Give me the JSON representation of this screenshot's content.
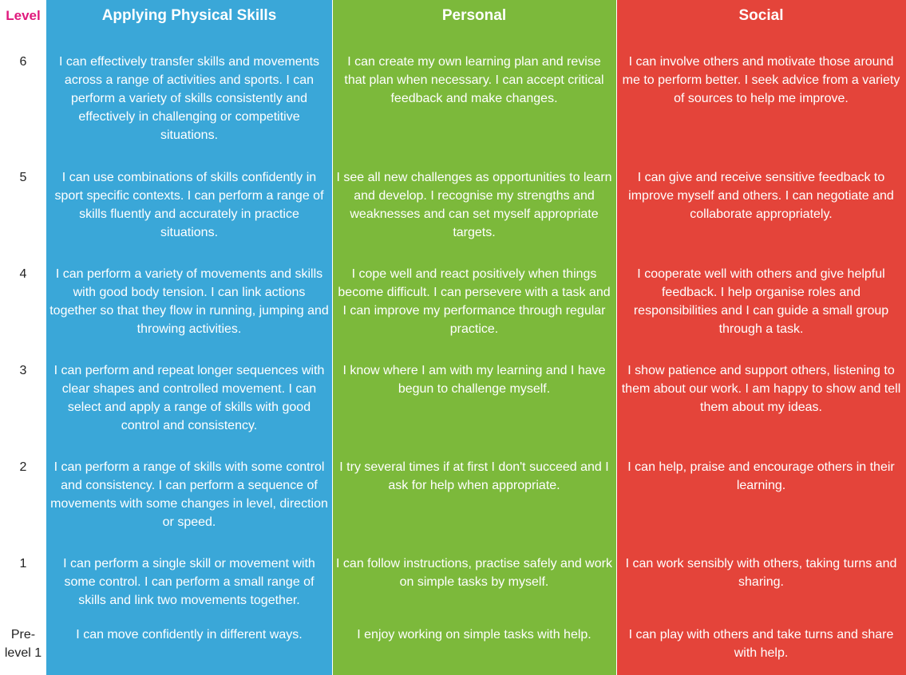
{
  "header": {
    "level": "Level",
    "physical": "Applying Physical Skills",
    "personal": "Personal",
    "social": "Social"
  },
  "colors": {
    "physical": "#3aa7d8",
    "personal": "#7cb93b",
    "social": "#e4443a",
    "level_header": "#e0197d"
  },
  "rows": [
    {
      "level": "6",
      "physical": "I can effectively transfer skills and movements across a range of activities and sports. I can perform a variety of skills consistently and effectively in challenging or competitive situations.",
      "personal": "I can create my own learning plan and revise that plan when necessary. I can accept critical feedback and make changes.",
      "social": "I can involve others and motivate those around me to perform better. I seek advice from a variety of sources to help me improve."
    },
    {
      "level": "5",
      "physical": "I can use combinations of skills confidently in sport specific contexts. I can perform a range of skills fluently and accurately in practice situations.",
      "personal": "I see all new challenges as opportunities to learn and develop. I recognise my strengths and weaknesses and can set myself appropriate targets.",
      "social": "I can give and receive sensitive feedback to improve myself and others. I can negotiate and collaborate appropriately."
    },
    {
      "level": "4",
      "physical": "I can perform a variety of movements and skills with good body tension. I can link actions together so that they flow in running, jumping and throwing activities.",
      "personal": "I cope well and react positively when things become difficult. I can persevere with a task and I can improve my performance through regular practice.",
      "social": "I cooperate well with others and give helpful feedback. I help organise roles and responsibilities and I can guide a small group through a task."
    },
    {
      "level": "3",
      "physical": "I can perform and repeat longer sequences with clear shapes and controlled movement. I can select and apply a range of skills with good control and consistency.",
      "personal": "I know where I am with my learning and I have begun to challenge myself.",
      "social": "I show patience and support others, listening to them about our work. I am happy to show and tell them about my ideas."
    },
    {
      "level": "2",
      "physical": "I can perform a range of skills with some control and consistency. I can perform a sequence of movements with some changes in level, direction or speed.",
      "personal": "I try several times if at first I don't succeed and I ask for help when appropriate.",
      "social": "I can help, praise and encourage others in their learning."
    },
    {
      "level": "1",
      "physical": "I can perform a single skill or movement with some control. I can perform a small range of skills and link two movements together.",
      "personal": "I can follow instructions, practise safely and work on simple tasks by myself.",
      "social": "I can work sensibly with others, taking turns and sharing."
    },
    {
      "level": "Pre-level 1",
      "physical": "I can move confidently in different ways.",
      "personal": "I enjoy working on simple tasks with help.",
      "social": "I can play with others and take turns and share with help."
    }
  ]
}
